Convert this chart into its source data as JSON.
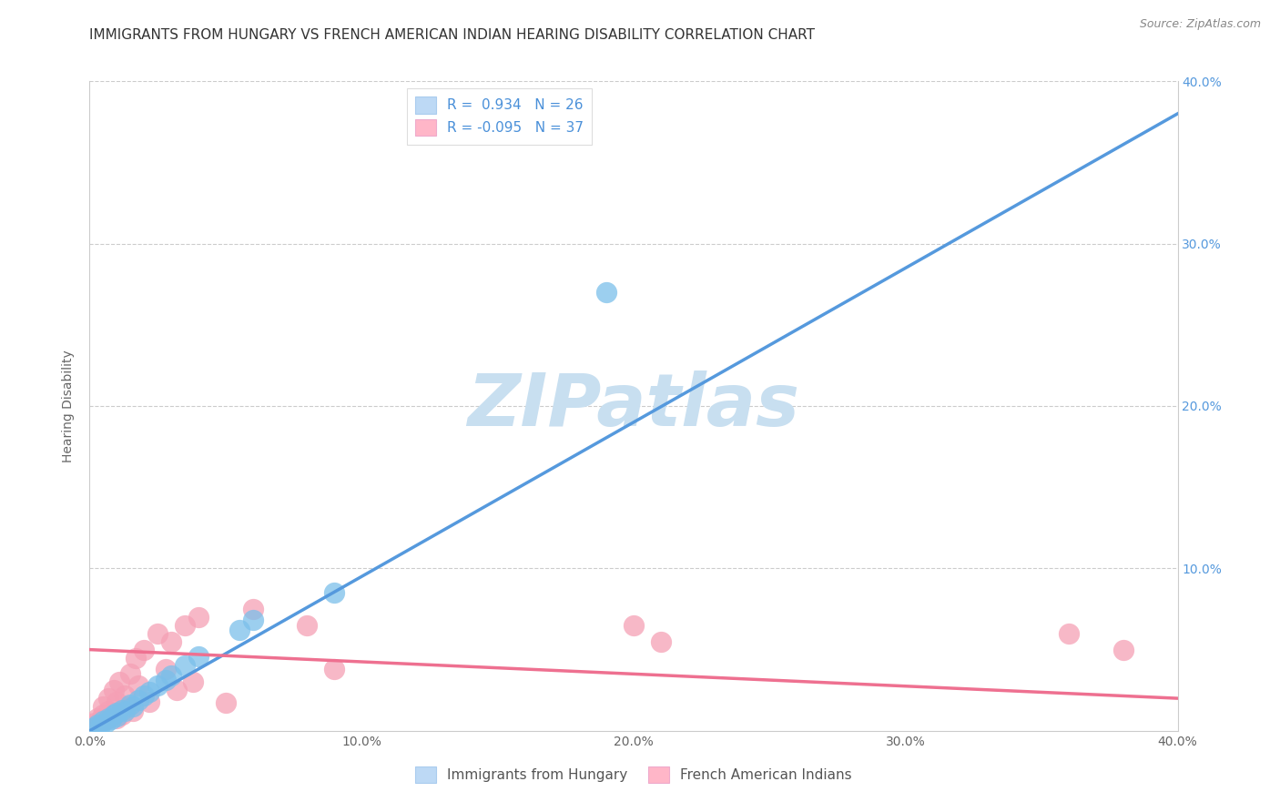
{
  "title": "IMMIGRANTS FROM HUNGARY VS FRENCH AMERICAN INDIAN HEARING DISABILITY CORRELATION CHART",
  "source": "Source: ZipAtlas.com",
  "ylabel": "Hearing Disability",
  "xlim": [
    0.0,
    0.4
  ],
  "ylim": [
    0.0,
    0.4
  ],
  "xtick_labels": [
    "0.0%",
    "",
    "10.0%",
    "",
    "20.0%",
    "",
    "30.0%",
    "",
    "40.0%"
  ],
  "xtick_vals": [
    0.0,
    0.05,
    0.1,
    0.15,
    0.2,
    0.25,
    0.3,
    0.35,
    0.4
  ],
  "ytick_labels": [
    "",
    "10.0%",
    "20.0%",
    "30.0%",
    "40.0%"
  ],
  "ytick_vals": [
    0.0,
    0.1,
    0.2,
    0.3,
    0.4
  ],
  "right_ytick_labels": [
    "",
    "10.0%",
    "20.0%",
    "30.0%",
    "40.0%"
  ],
  "r_blue": 0.934,
  "n_blue": 26,
  "r_pink": -0.095,
  "n_pink": 37,
  "blue_color": "#7BBFEA",
  "pink_color": "#F5A0B5",
  "blue_line_color": "#5599DD",
  "pink_line_color": "#EE7090",
  "legend_blue_fill": "#BDD9F5",
  "legend_pink_fill": "#FFB6C8",
  "watermark": "ZIPatlas",
  "watermark_color": "#C8DFF0",
  "blue_scatter_x": [
    0.002,
    0.003,
    0.004,
    0.005,
    0.006,
    0.007,
    0.008,
    0.009,
    0.01,
    0.01,
    0.012,
    0.013,
    0.015,
    0.016,
    0.018,
    0.02,
    0.022,
    0.025,
    0.028,
    0.03,
    0.035,
    0.04,
    0.055,
    0.06,
    0.09,
    0.19
  ],
  "blue_scatter_y": [
    0.002,
    0.004,
    0.003,
    0.006,
    0.005,
    0.008,
    0.007,
    0.01,
    0.009,
    0.011,
    0.013,
    0.012,
    0.016,
    0.015,
    0.019,
    0.022,
    0.024,
    0.028,
    0.031,
    0.034,
    0.04,
    0.046,
    0.062,
    0.068,
    0.085,
    0.27
  ],
  "pink_scatter_x": [
    0.002,
    0.003,
    0.004,
    0.005,
    0.005,
    0.006,
    0.007,
    0.007,
    0.008,
    0.009,
    0.01,
    0.01,
    0.011,
    0.012,
    0.013,
    0.014,
    0.015,
    0.016,
    0.017,
    0.018,
    0.02,
    0.022,
    0.025,
    0.028,
    0.03,
    0.032,
    0.035,
    0.038,
    0.04,
    0.05,
    0.06,
    0.08,
    0.09,
    0.2,
    0.21,
    0.36,
    0.38
  ],
  "pink_scatter_y": [
    0.005,
    0.008,
    0.006,
    0.01,
    0.015,
    0.007,
    0.012,
    0.02,
    0.009,
    0.025,
    0.008,
    0.018,
    0.03,
    0.01,
    0.022,
    0.015,
    0.035,
    0.012,
    0.045,
    0.028,
    0.05,
    0.018,
    0.06,
    0.038,
    0.055,
    0.025,
    0.065,
    0.03,
    0.07,
    0.017,
    0.075,
    0.065,
    0.038,
    0.065,
    0.055,
    0.06,
    0.05
  ],
  "title_fontsize": 11,
  "axis_fontsize": 10,
  "legend_fontsize": 11
}
